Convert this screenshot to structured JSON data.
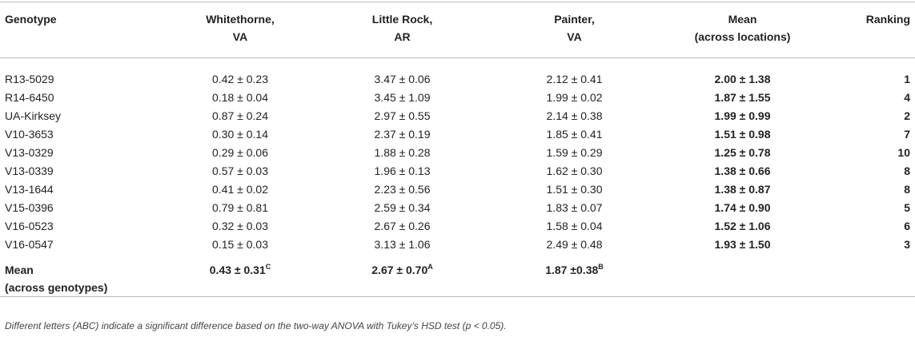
{
  "table": {
    "header": [
      [
        "Genotype"
      ],
      [
        "Whitethorne,",
        "VA"
      ],
      [
        "Little Rock,",
        "AR"
      ],
      [
        "Painter,",
        "VA"
      ],
      [
        "Mean",
        "(across locations)"
      ],
      [
        "Ranking"
      ]
    ],
    "rows": [
      [
        "R13-5029",
        "0.42 ± 0.23",
        "3.47 ± 0.06",
        "2.12 ± 0.41",
        "2.00 ± 1.38",
        "1"
      ],
      [
        "R14-6450",
        "0.18 ± 0.04",
        "3.45 ± 1.09",
        "1.99 ± 0.02",
        "1.87 ± 1.55",
        "4"
      ],
      [
        "UA-Kirksey",
        "0.87 ± 0.24",
        "2.97 ± 0.55",
        "2.14 ± 0.38",
        "1.99 ± 0.99",
        "2"
      ],
      [
        "V10-3653",
        "0.30 ± 0.14",
        "2.37 ± 0.19",
        "1.85 ± 0.41",
        "1.51 ± 0.98",
        "7"
      ],
      [
        "V13-0329",
        "0.29 ± 0.06",
        "1.88 ± 0.28",
        "1.59 ± 0.29",
        "1.25 ± 0.78",
        "10"
      ],
      [
        "V13-0339",
        "0.57 ± 0.03",
        "1.96 ± 0.13",
        "1.62 ± 0.30",
        "1.38 ± 0.66",
        "8"
      ],
      [
        "V13-1644",
        "0.41 ± 0.02",
        "2.23 ± 0.56",
        "1.51 ± 0.30",
        "1.38 ± 0.87",
        "8"
      ],
      [
        "V15-0396",
        "0.79 ± 0.81",
        "2.59 ± 0.34",
        "1.83 ± 0.07",
        "1.74 ± 0.90",
        "5"
      ],
      [
        "V16-0523",
        "0.32 ± 0.03",
        "2.67 ± 0.26",
        "1.58 ± 0.04",
        "1.52 ± 1.06",
        "6"
      ],
      [
        "V16-0547",
        "0.15 ± 0.03",
        "3.13 ± 1.06",
        "2.49 ± 0.48",
        "1.93 ± 1.50",
        "3"
      ]
    ],
    "footer_row": {
      "label": [
        "Mean",
        "(across genotypes)"
      ],
      "cells": [
        {
          "text": "0.43 ± 0.31",
          "sup": "C"
        },
        {
          "text": "2.67 ± 0.70",
          "sup": "A"
        },
        {
          "text": "1.87 ±0.38",
          "sup": "B"
        }
      ]
    }
  },
  "footnote": "Different letters (ABC) indicate a significant difference based on the two-way ANOVA with Tukey’s HSD test (p < 0.05)."
}
